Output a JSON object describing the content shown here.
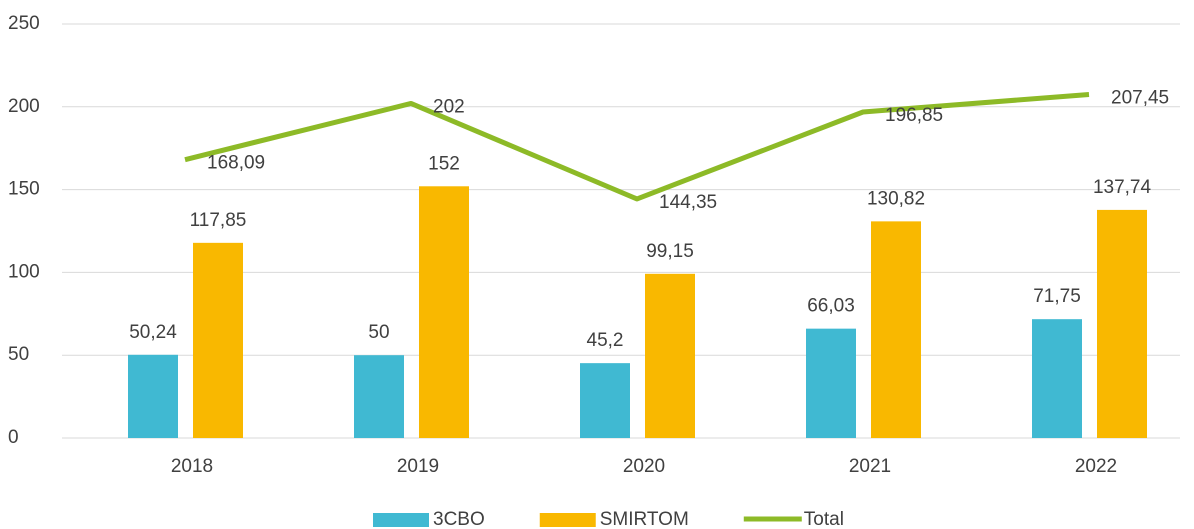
{
  "chart_data": {
    "type": "bar",
    "categories": [
      "2018",
      "2019",
      "2020",
      "2021",
      "2022"
    ],
    "series": [
      {
        "name": "3CBO",
        "type": "bar",
        "color": "#40b9d2",
        "values": [
          50.24,
          50,
          45.2,
          66.03,
          71.75
        ],
        "value_labels": [
          "50,24",
          "50",
          "45,2",
          "66,03",
          "71,75"
        ]
      },
      {
        "name": "SMIRTOM",
        "type": "bar",
        "color": "#f9b800",
        "values": [
          117.85,
          152,
          99.15,
          130.82,
          137.74
        ],
        "value_labels": [
          "117,85",
          "152",
          "99,15",
          "130,82",
          "137,74"
        ]
      },
      {
        "name": "Total",
        "type": "line",
        "color": "#8dba27",
        "values": [
          168.09,
          202,
          144.35,
          196.85,
          207.45
        ],
        "value_labels": [
          "168,09",
          "202",
          "144,35",
          "196,85",
          "207,45"
        ]
      }
    ],
    "ylim": [
      0,
      250
    ],
    "yticks": [
      0,
      50,
      100,
      150,
      200,
      250
    ],
    "grid": true,
    "legend": "bottom"
  }
}
